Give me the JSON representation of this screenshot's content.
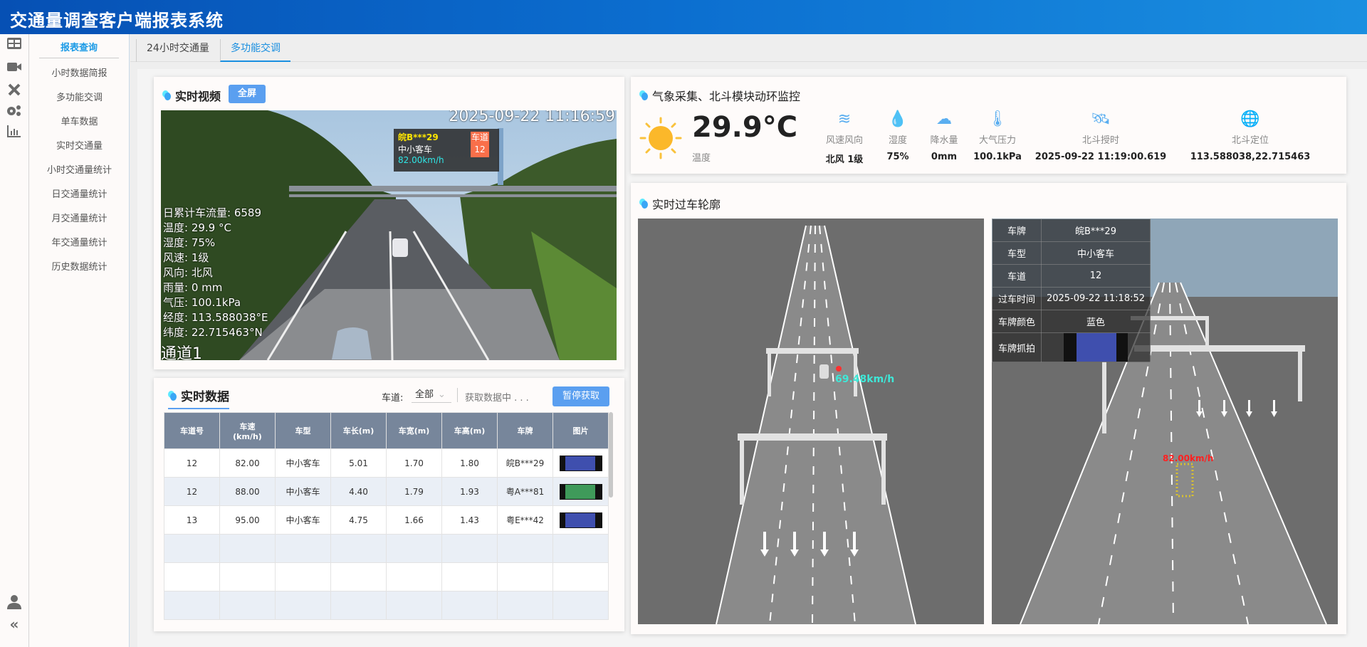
{
  "app": {
    "title": "交通量调查客户端报表系统"
  },
  "rail": {
    "icons": [
      "dashboard-icon",
      "video-camera-icon",
      "tools-icon",
      "settings-gears-icon",
      "bar-chart-icon"
    ],
    "bottom": [
      "user-icon",
      "collapse-icon"
    ],
    "collapse_glyph": "«"
  },
  "menu": {
    "header": "报表查询",
    "items": [
      "小时数据简报",
      "多功能交调",
      "单车数据",
      "实时交通量",
      "小时交通量统计",
      "日交通量统计",
      "月交通量统计",
      "年交通量统计",
      "历史数据统计"
    ]
  },
  "tabs": [
    {
      "label": "24小时交通量",
      "active": false
    },
    {
      "label": "多功能交调",
      "active": true
    }
  ],
  "video": {
    "title": "实时视频",
    "fullscreen": "全屏",
    "timestamp": "2025-09-22 11:16:59",
    "popup": {
      "plate": "皖B***29",
      "type": "中小客车",
      "speed": "82.00km/h",
      "lane_label": "车道",
      "lane": "12"
    },
    "overlay": [
      "日累计车流量: 6589",
      "温度: 29.9 °C",
      "湿度: 75%",
      "风速: 1级",
      "风向: 北风",
      "雨量: 0 mm",
      "气压: 100.1kPa",
      "经度: 113.588038°E",
      "纬度: 22.715463°N"
    ],
    "channel": "通道1"
  },
  "realtime": {
    "title": "实时数据",
    "lane_label": "车道:",
    "lane_value": "全部",
    "status": "获取数据中 . . .",
    "pause": "暂停获取",
    "columns": [
      "车道号",
      "车速\n(km/h)",
      "车型",
      "车长(m)",
      "车宽(m)",
      "车高(m)",
      "车牌",
      "图片"
    ],
    "rows": [
      {
        "lane": "12",
        "speed": "82.00",
        "type": "中小客车",
        "length": "5.01",
        "width": "1.70",
        "height": "1.80",
        "plate": "皖B***29",
        "plate_color": "#3f4fae"
      },
      {
        "lane": "12",
        "speed": "88.00",
        "type": "中小客车",
        "length": "4.40",
        "width": "1.79",
        "height": "1.93",
        "plate": "粤A***81",
        "plate_color": "#3f9a5a"
      },
      {
        "lane": "13",
        "speed": "95.00",
        "type": "中小客车",
        "length": "4.75",
        "width": "1.66",
        "height": "1.43",
        "plate": "粤E***42",
        "plate_color": "#3f4fae"
      }
    ]
  },
  "weather": {
    "title": "气象采集、北斗模块动环监控",
    "temperature": "29.9°C",
    "temp_label": "温度",
    "items": [
      {
        "icon": "wind-icon",
        "label": "风速风向",
        "value": "北风 1级"
      },
      {
        "icon": "humidity-drop-icon",
        "label": "湿度",
        "value": "75%"
      },
      {
        "icon": "rain-cloud-icon",
        "label": "降水量",
        "value": "0mm"
      },
      {
        "icon": "thermometer-icon",
        "label": "大气压力",
        "value": "100.1kPa"
      },
      {
        "icon": "satellite-icon",
        "label": "北斗授时",
        "value": "2025-09-22  11:19:00.619"
      },
      {
        "icon": "globe-icon",
        "label": "北斗定位",
        "value": "113.588038,22.715463"
      }
    ]
  },
  "outline": {
    "title": "实时过车轮廓",
    "left_speed": "69.48km/h",
    "right_speed": "82.00km/h",
    "info": [
      {
        "k": "车牌",
        "v": "皖B***29"
      },
      {
        "k": "车型",
        "v": "中小客车"
      },
      {
        "k": "车道",
        "v": "12"
      },
      {
        "k": "过车时间",
        "v": "2025-09-22  11:18:52"
      },
      {
        "k": "车牌颜色",
        "v": "蓝色"
      },
      {
        "k": "车牌抓拍",
        "v": ""
      }
    ]
  },
  "colors": {
    "accent": "#1a8fe0",
    "button": "#5a9ff0",
    "table_header": "#77869b",
    "speed_cyan": "#3ee8d8",
    "speed_red": "#ff2020"
  }
}
